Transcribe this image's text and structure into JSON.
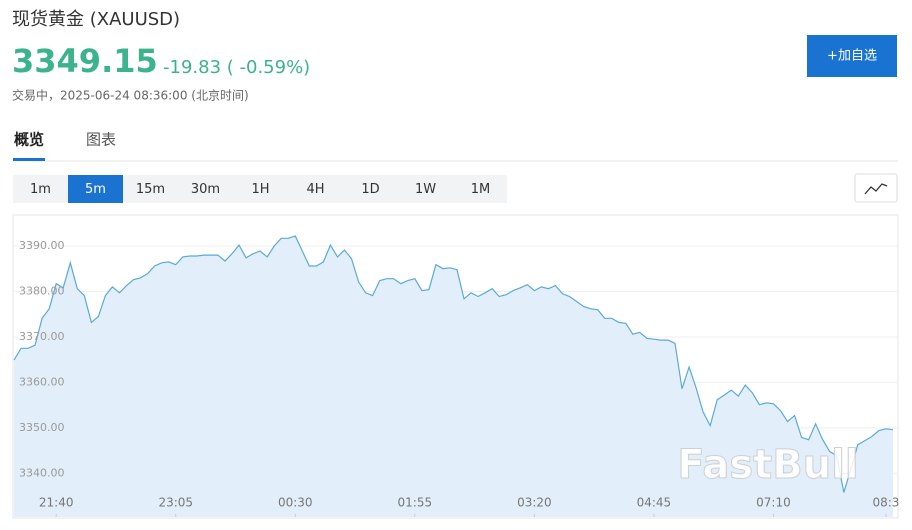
{
  "header": {
    "title": "现货黄金 (XAUUSD)",
    "price": "3349.15",
    "change": "-19.83 ( -0.59%)",
    "status": "交易中，2025-06-24 08:36:00 (北京时间)"
  },
  "button": "+加自选",
  "tabs": [
    {
      "label": "概览",
      "active": true
    },
    {
      "label": "图表",
      "active": false
    }
  ],
  "intervals": [
    {
      "label": "1m",
      "active": false
    },
    {
      "label": "5m",
      "active": true
    },
    {
      "label": "15m",
      "active": false
    },
    {
      "label": "30m",
      "active": false
    },
    {
      "label": "1H",
      "active": false
    },
    {
      "label": "4H",
      "active": false
    },
    {
      "label": "1D",
      "active": false
    },
    {
      "label": "1W",
      "active": false
    },
    {
      "label": "1M",
      "active": false
    }
  ],
  "chart_data": {
    "type": "area",
    "color": "#5aaad8",
    "fill": "#e2effa",
    "grid": true,
    "watermark": "FastBull",
    "values": [
      3364.9,
      3367.5,
      3367.5,
      3368.2,
      3374.1,
      3376.2,
      3381.7,
      3380.8,
      3386.3,
      3380.6,
      3379.1,
      3373.2,
      3374.5,
      3379.1,
      3381.0,
      3379.7,
      3381.3,
      3382.6,
      3383.0,
      3383.9,
      3385.6,
      3386.3,
      3386.5,
      3385.9,
      3387.6,
      3387.8,
      3387.8,
      3388.0,
      3388.0,
      3388.0,
      3386.7,
      3388.3,
      3390.2,
      3387.4,
      3388.3,
      3388.9,
      3387.6,
      3390.0,
      3391.7,
      3391.7,
      3392.2,
      3388.9,
      3385.6,
      3385.6,
      3386.5,
      3390.2,
      3387.6,
      3389.1,
      3387.2,
      3382.1,
      3379.7,
      3379.1,
      3382.4,
      3382.8,
      3382.8,
      3381.7,
      3382.4,
      3382.8,
      3380.2,
      3380.4,
      3385.9,
      3385.0,
      3385.2,
      3384.8,
      3378.4,
      3379.7,
      3378.9,
      3379.7,
      3380.6,
      3378.9,
      3379.3,
      3380.2,
      3380.8,
      3381.5,
      3380.2,
      3381.0,
      3380.6,
      3381.3,
      3379.5,
      3378.9,
      3377.8,
      3376.7,
      3376.2,
      3376.0,
      3374.1,
      3374.1,
      3373.2,
      3373.0,
      3370.6,
      3371.0,
      3369.7,
      3369.5,
      3369.3,
      3369.3,
      3368.6,
      3358.6,
      3363.4,
      3358.8,
      3353.5,
      3350.5,
      3356.2,
      3357.2,
      3358.3,
      3357.0,
      3359.4,
      3357.7,
      3355.1,
      3355.5,
      3355.3,
      3353.8,
      3351.4,
      3352.7,
      3347.9,
      3347.4,
      3350.9,
      3347.4,
      3344.8,
      3343.9,
      3335.8,
      3340.9,
      3346.3,
      3347.2,
      3348.1,
      3349.4,
      3349.8,
      3349.6
    ],
    "xlim": [
      0,
      125
    ],
    "xticks": [
      {
        "value": 6,
        "label": "21:40"
      },
      {
        "value": 23,
        "label": "23:05"
      },
      {
        "value": 40,
        "label": "00:30"
      },
      {
        "value": 57,
        "label": "01:55"
      },
      {
        "value": 74,
        "label": "03:20"
      },
      {
        "value": 91,
        "label": "04:45"
      },
      {
        "value": 108,
        "label": "07:10"
      },
      {
        "value": 124,
        "label": "08:3"
      }
    ],
    "ylim": [
      3330.4,
      3396.6
    ],
    "yticks": [
      {
        "value": 3340,
        "label": "3340.00"
      },
      {
        "value": 3350,
        "label": "3350.00"
      },
      {
        "value": 3360,
        "label": "3360.00"
      },
      {
        "value": 3370,
        "label": "3370.00"
      },
      {
        "value": 3380,
        "label": "3380.00"
      },
      {
        "value": 3390,
        "label": "3390.00"
      }
    ]
  }
}
